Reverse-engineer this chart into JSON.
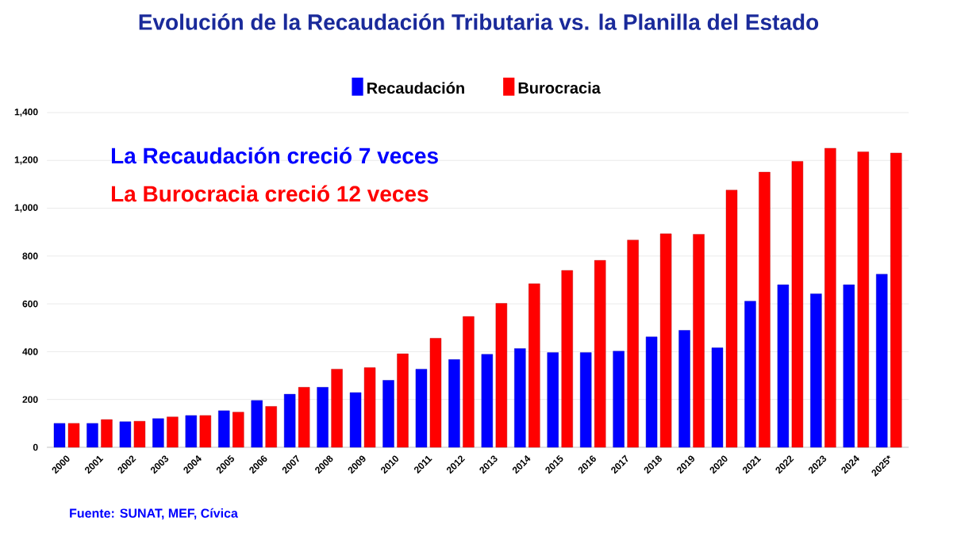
{
  "chart_data": {
    "type": "bar",
    "title": "Evolución de la Recaudación Tributaria vs. la Planilla del Estado",
    "categories": [
      "2000",
      "2001",
      "2002",
      "2003",
      "2004",
      "2005",
      "2006",
      "2007",
      "2008",
      "2009",
      "2010",
      "2011",
      "2012",
      "2013",
      "2014",
      "2015",
      "2016",
      "2017",
      "2018",
      "2019",
      "2020",
      "2021",
      "2022",
      "2023",
      "2024",
      "2025*"
    ],
    "series": [
      {
        "name": "Recaudación",
        "color": "#0000ff",
        "values": [
          100,
          100,
          107,
          120,
          133,
          153,
          196,
          222,
          251,
          229,
          280,
          327,
          367,
          389,
          413,
          396,
          396,
          402,
          462,
          489,
          416,
          611,
          680,
          642,
          680,
          724
        ]
      },
      {
        "name": "Burocracia",
        "color": "#ff0000",
        "values": [
          100,
          116,
          109,
          127,
          133,
          147,
          171,
          251,
          327,
          333,
          391,
          456,
          547,
          602,
          684,
          740,
          782,
          867,
          893,
          891,
          1076,
          1151,
          1196,
          1251,
          1236,
          1231
        ]
      }
    ],
    "ylim": [
      0,
      1400
    ],
    "yticks": [
      0,
      200,
      400,
      600,
      800,
      {
        "value": 1000,
        "label": "1,000"
      },
      {
        "value": 1200,
        "label": "1,200"
      },
      {
        "value": 1400,
        "label": "1,400"
      }
    ],
    "grid": "y",
    "legend": "top",
    "annotations": [
      "La Recaudación creció 7 veces",
      "La Burocracia creció 12 veces",
      "Fuente: SUNAT, MEF, Cívica"
    ]
  }
}
